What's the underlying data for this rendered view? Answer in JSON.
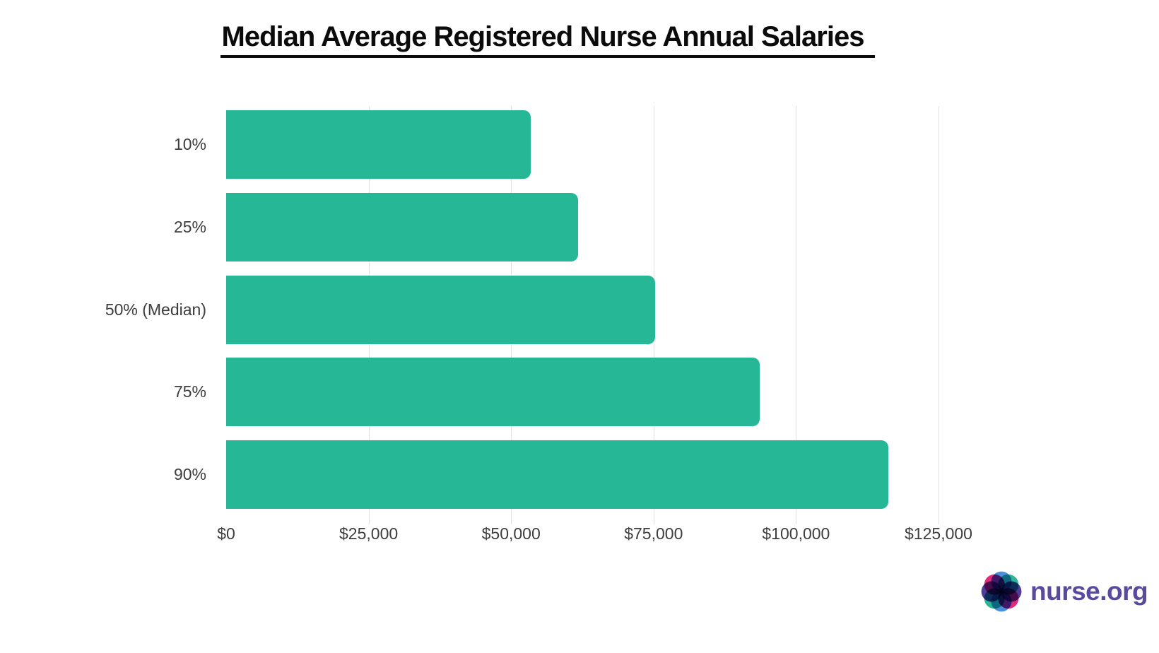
{
  "title": "Median Average Registered Nurse Annual Salaries",
  "chart_data": {
    "type": "bar",
    "orientation": "horizontal",
    "title": "Median Average Registered Nurse Annual Salaries",
    "categories": [
      "10%",
      "25%",
      "50% (Median)",
      "75%",
      "90%"
    ],
    "values": [
      53410,
      61790,
      75330,
      93590,
      116230
    ],
    "xlabel": "",
    "ylabel": "",
    "xlim": [
      0,
      137500
    ],
    "x_tick_values": [
      0,
      25000,
      50000,
      75000,
      100000,
      125000
    ],
    "x_tick_labels": [
      "$0",
      "$25,000",
      "$50,000",
      "$75,000",
      "$100,000",
      "$125,000"
    ],
    "grid": true,
    "legend": false,
    "bar_color": "#26b796",
    "gridline_color": "#e0e0e0",
    "label_color": "#3d3d3d"
  },
  "branding": {
    "logo_text": "nurse.org",
    "logo_text_color": "#5a4a9e",
    "logo_icon": "flower-rosette-icon",
    "logo_petal_colors": [
      "#e02a7c",
      "#4a90d8",
      "#2bb795",
      "#4f3d97"
    ]
  }
}
